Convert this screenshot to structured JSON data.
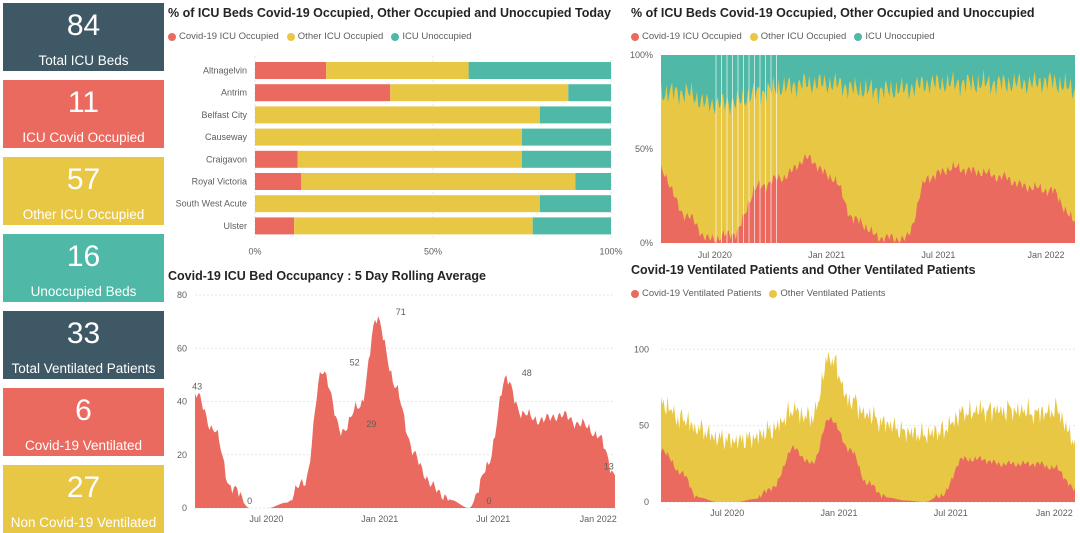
{
  "colors": {
    "covid": "#ea6a5f",
    "other": "#e8c744",
    "unoccupied": "#4fb8a7",
    "dark": "#3f5865"
  },
  "kpis": [
    {
      "value": "84",
      "label": "Total ICU Beds",
      "color": "#3f5865"
    },
    {
      "value": "11",
      "label": "ICU Covid Occupied",
      "color": "#ea6a5f"
    },
    {
      "value": "57",
      "label": "Other ICU Occupied",
      "color": "#e8c744"
    },
    {
      "value": "16",
      "label": "Unoccupied Beds",
      "color": "#4fb8a7"
    },
    {
      "value": "33",
      "label": "Total Ventilated Patients",
      "color": "#3f5865"
    },
    {
      "value": "6",
      "label": "Covid-19 Ventilated",
      "color": "#ea6a5f"
    },
    {
      "value": "27",
      "label": "Non Covid-19 Ventilated",
      "color": "#e8c744"
    }
  ],
  "chart_data": [
    {
      "type": "bar",
      "stacked": "100%",
      "orientation": "horizontal",
      "title": "% of ICU Beds Covid-19 Occupied, Other Occupied and Unoccupied Today",
      "legend": [
        "Covid-19 ICU Occupied",
        "Other ICU Occupied",
        "ICU Unoccupied"
      ],
      "categories": [
        "Altnagelvin",
        "Antrim",
        "Belfast City",
        "Causeway",
        "Craigavon",
        "Royal Victoria",
        "South West Acute",
        "Ulster"
      ],
      "series": [
        {
          "name": "Covid-19 ICU Occupied",
          "values": [
            20,
            38,
            0,
            0,
            12,
            13,
            0,
            11
          ]
        },
        {
          "name": "Other ICU Occupied",
          "values": [
            40,
            50,
            80,
            75,
            63,
            77,
            80,
            67
          ]
        },
        {
          "name": "ICU Unoccupied",
          "values": [
            40,
            12,
            20,
            25,
            25,
            10,
            20,
            22
          ]
        }
      ],
      "xticks": [
        "0%",
        "50%",
        "100%"
      ],
      "xlim": [
        0,
        100
      ]
    },
    {
      "type": "area",
      "stacked": "100%",
      "title": "% of ICU Beds Covid-19 Occupied, Other Occupied and Unoccupied",
      "legend": [
        "Covid-19 ICU Occupied",
        "Other ICU Occupied",
        "ICU Unoccupied"
      ],
      "xticks": [
        "Jul 2020",
        "Jan 2021",
        "Jul 2021",
        "Jan 2022"
      ],
      "yticks": [
        "0%",
        "50%",
        "100%"
      ],
      "x": [
        "Apr 2020",
        "Jun 2020",
        "Aug 2020",
        "Oct 2020",
        "Nov 2020",
        "Dec 2020",
        "Jan 2021",
        "Feb 2021",
        "Mar 2021",
        "Apr 2021",
        "Jun 2021",
        "Aug 2021",
        "Sep 2021",
        "Oct 2021",
        "Nov 2021",
        "Dec 2021",
        "Jan 2022",
        "Feb 2022"
      ],
      "series": [
        {
          "name": "Covid-19 ICU Occupied",
          "values": [
            38,
            15,
            2,
            5,
            30,
            35,
            45,
            35,
            12,
            3,
            2,
            35,
            40,
            38,
            35,
            30,
            28,
            12
          ]
        },
        {
          "name": "Other ICU Occupied",
          "values": [
            42,
            65,
            72,
            70,
            50,
            48,
            40,
            50,
            70,
            78,
            80,
            50,
            45,
            47,
            50,
            55,
            58,
            70
          ]
        },
        {
          "name": "ICU Unoccupied",
          "values": [
            20,
            20,
            26,
            25,
            20,
            17,
            15,
            15,
            18,
            19,
            18,
            15,
            15,
            15,
            15,
            15,
            14,
            18
          ]
        }
      ]
    },
    {
      "type": "area",
      "title": "Covid-19 ICU Bed Occupancy : 5 Day Rolling Average",
      "ylim": [
        0,
        80
      ],
      "yticks": [
        "0",
        "20",
        "40",
        "60",
        "80"
      ],
      "xticks": [
        "Jul 2020",
        "Jan 2021",
        "Jul 2021",
        "Jan 2022"
      ],
      "annotations": [
        "43",
        "0",
        "52",
        "29",
        "71",
        "0",
        "48",
        "13"
      ],
      "x": [
        "Apr 2020",
        "May 2020",
        "Jun 2020",
        "Jul 2020",
        "Aug 2020",
        "Sep 2020",
        "Oct 2020",
        "Nov 2020",
        "Dec 2020",
        "Dec 2020",
        "Jan 2021",
        "Feb 2021",
        "Mar 2021",
        "Apr 2021",
        "May 2021",
        "Jun 2021",
        "Jul 2021",
        "Aug 2021",
        "Sep 2021",
        "Oct 2021",
        "Nov 2021",
        "Dec 2021",
        "Jan 2022",
        "Feb 2022"
      ],
      "values": [
        43,
        30,
        8,
        0,
        0,
        2,
        10,
        52,
        29,
        38,
        71,
        45,
        20,
        8,
        3,
        0,
        15,
        48,
        35,
        33,
        35,
        32,
        28,
        13
      ]
    },
    {
      "type": "area",
      "stacked": true,
      "title": "Covid-19 Ventilated Patients and Other Ventilated Patients",
      "legend": [
        "Covid-19 Ventilated Patients",
        "Other Ventilated Patients"
      ],
      "ylim": [
        0,
        110
      ],
      "yticks": [
        "0",
        "50",
        "100"
      ],
      "xticks": [
        "Jul 2020",
        "Jan 2021",
        "Jul 2021",
        "Jan 2022"
      ],
      "x": [
        "Apr 2020",
        "May 2020",
        "Jun 2020",
        "Jul 2020",
        "Aug 2020",
        "Sep 2020",
        "Oct 2020",
        "Nov 2020",
        "Dec 2020",
        "Jan 2021",
        "Feb 2021",
        "Mar 2021",
        "Apr 2021",
        "May 2021",
        "Jun 2021",
        "Jul 2021",
        "Aug 2021",
        "Sep 2021",
        "Oct 2021",
        "Nov 2021",
        "Dec 2021",
        "Jan 2022",
        "Feb 2022"
      ],
      "series": [
        {
          "name": "Covid-19 Ventilated Patients",
          "values": [
            35,
            20,
            3,
            0,
            0,
            2,
            10,
            35,
            25,
            55,
            35,
            12,
            3,
            1,
            0,
            5,
            28,
            28,
            25,
            25,
            25,
            22,
            8
          ]
        },
        {
          "name": "Other Ventilated Patients",
          "values": [
            30,
            35,
            45,
            42,
            40,
            40,
            38,
            25,
            30,
            40,
            32,
            45,
            48,
            45,
            44,
            42,
            30,
            32,
            35,
            35,
            33,
            38,
            32
          ]
        }
      ]
    }
  ]
}
